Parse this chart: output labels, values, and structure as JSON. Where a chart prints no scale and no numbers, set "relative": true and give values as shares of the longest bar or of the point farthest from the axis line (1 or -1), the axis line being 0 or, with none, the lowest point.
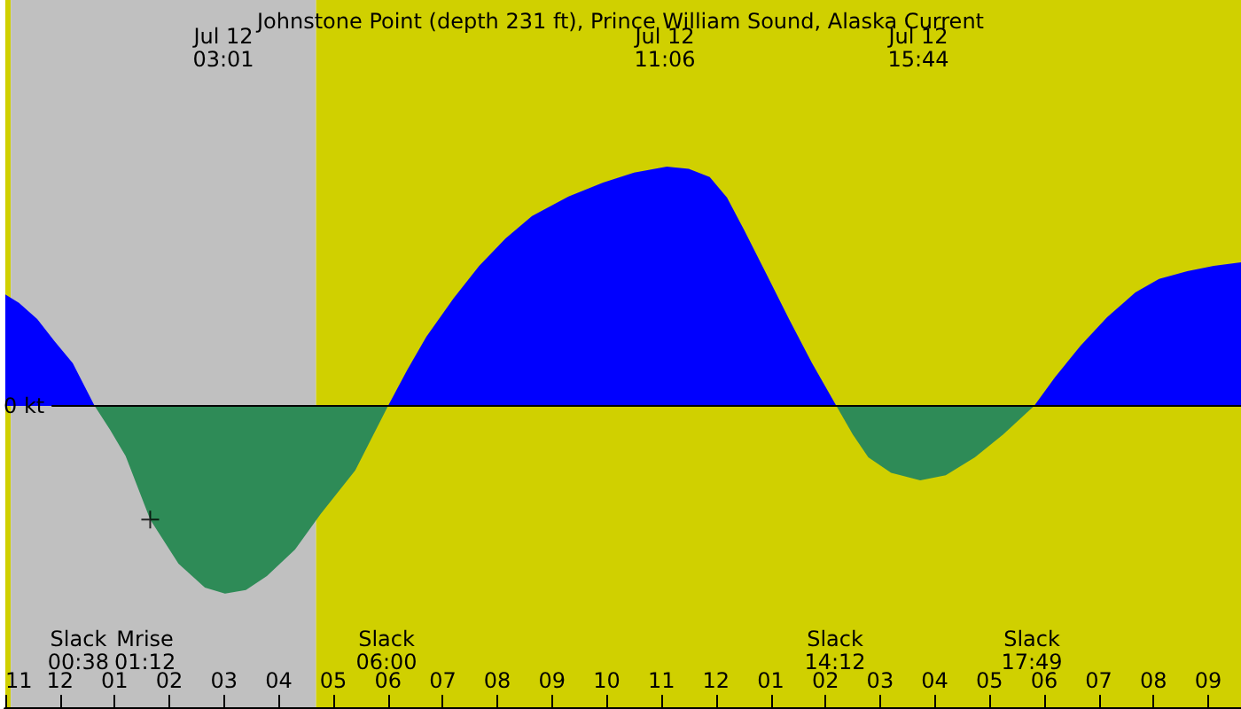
{
  "chart_data": {
    "type": "area",
    "title": "Johnstone Point (depth 231 ft), Prince William Sound, Alaska Current",
    "relative": true,
    "xlim": [
      "--07-11T23:00",
      "--07-12T21:36"
    ],
    "xticks": [
      {
        "value": "--07-11T23:00",
        "label": "11"
      },
      {
        "value": "--07-12T00:00",
        "label": "12"
      },
      {
        "value": "--07-12T01:00",
        "label": "01"
      },
      {
        "value": "--07-12T02:00",
        "label": "02"
      },
      {
        "value": "--07-12T03:00",
        "label": "03"
      },
      {
        "value": "--07-12T04:00",
        "label": "04"
      },
      {
        "value": "--07-12T05:00",
        "label": "05"
      },
      {
        "value": "--07-12T06:00",
        "label": "06"
      },
      {
        "value": "--07-12T07:00",
        "label": "07"
      },
      {
        "value": "--07-12T08:00",
        "label": "08"
      },
      {
        "value": "--07-12T09:00",
        "label": "09"
      },
      {
        "value": "--07-12T10:00",
        "label": "10"
      },
      {
        "value": "--07-12T11:00",
        "label": "11"
      },
      {
        "value": "--07-12T12:00",
        "label": "12"
      },
      {
        "value": "--07-12T13:00",
        "label": "01"
      },
      {
        "value": "--07-12T14:00",
        "label": "02"
      },
      {
        "value": "--07-12T15:00",
        "label": "03"
      },
      {
        "value": "--07-12T16:00",
        "label": "04"
      },
      {
        "value": "--07-12T17:00",
        "label": "05"
      },
      {
        "value": "--07-12T18:00",
        "label": "06"
      },
      {
        "value": "--07-12T19:00",
        "label": "07"
      },
      {
        "value": "--07-12T20:00",
        "label": "08"
      },
      {
        "value": "--07-12T21:00",
        "label": "09"
      }
    ],
    "series": [
      {
        "color": "#0000ff",
        "x": [
          "--07-11T23:00",
          "--07-11T23:15",
          "--07-11T23:35",
          "--07-11T23:54",
          "--07-12T00:14",
          "--07-12T00:38"
        ],
        "values": [
          0.465,
          0.43,
          0.363,
          0.27,
          0.178,
          0
        ]
      },
      {
        "color": "#2e8b57",
        "x": [
          "--07-12T00:38",
          "--07-12T00:55",
          "--07-12T01:12",
          "--07-12T01:39",
          "--07-12T02:10",
          "--07-12T02:39",
          "--07-12T03:01",
          "--07-12T03:24",
          "--07-12T03:47",
          "--07-12T04:18",
          "--07-12T04:46",
          "--07-12T05:24",
          "--07-12T06:00"
        ],
        "values": [
          0,
          -0.1,
          -0.21,
          -0.475,
          -0.66,
          -0.76,
          -0.785,
          -0.77,
          -0.711,
          -0.6,
          -0.452,
          -0.27,
          0
        ]
      },
      {
        "color": "#0000ff",
        "x": [
          "--07-12T06:00",
          "--07-12T06:21",
          "--07-12T06:42",
          "--07-12T07:12",
          "--07-12T07:40",
          "--07-12T08:09",
          "--07-12T08:38",
          "--07-12T09:18",
          "--07-12T09:56",
          "--07-12T10:30",
          "--07-12T11:06",
          "--07-12T11:30",
          "--07-12T11:53",
          "--07-12T12:12",
          "--07-12T12:31",
          "--07-12T12:54",
          "--07-12T13:20",
          "--07-12T13:45",
          "--07-12T14:12"
        ],
        "values": [
          0,
          0.15,
          0.289,
          0.45,
          0.585,
          0.7,
          0.793,
          0.875,
          0.933,
          0.975,
          1.0,
          0.99,
          0.956,
          0.87,
          0.733,
          0.56,
          0.363,
          0.18,
          0
        ]
      },
      {
        "color": "#2e8b57",
        "x": [
          "--07-12T14:12",
          "--07-12T14:30",
          "--07-12T14:47",
          "--07-12T15:12",
          "--07-12T15:44",
          "--07-12T16:12",
          "--07-12T16:44",
          "--07-12T17:15",
          "--07-12T17:49"
        ],
        "values": [
          0,
          -0.12,
          -0.215,
          -0.28,
          -0.311,
          -0.29,
          -0.215,
          -0.12,
          0
        ]
      },
      {
        "color": "#0000ff",
        "x": [
          "--07-12T17:49",
          "--07-12T18:12",
          "--07-12T18:40",
          "--07-12T19:09",
          "--07-12T19:40",
          "--07-12T20:06",
          "--07-12T20:37",
          "--07-12T21:06",
          "--07-12T21:36"
        ],
        "values": [
          0,
          0.12,
          0.252,
          0.37,
          0.474,
          0.53,
          0.563,
          0.585,
          0.6
        ]
      },
      {
        "type": "scatter",
        "marker": "cross",
        "color": "#000000",
        "x": [
          "--07-12T01:39"
        ],
        "values": [
          -0.475
        ]
      }
    ],
    "bands": [
      {
        "axis": "x",
        "from": "--07-11T23:00",
        "to": "--07-11T23:06",
        "color": "#d0d000"
      },
      {
        "axis": "x",
        "from": "--07-11T23:06",
        "to": "--07-12T04:41",
        "color": "#c0c0c0"
      },
      {
        "axis": "x",
        "from": "--07-12T04:41",
        "to": "--07-12T21:36",
        "color": "#d0d000"
      }
    ],
    "annotations": [
      "Jul 12\n03:01",
      "Jul 12\n11:06",
      "Jul 12\n15:44",
      "0 kt",
      "Slack\n00:38",
      "Mrise\n01:12",
      "Slack\n06:00",
      "Slack\n14:12",
      "Slack\n17:49"
    ]
  }
}
